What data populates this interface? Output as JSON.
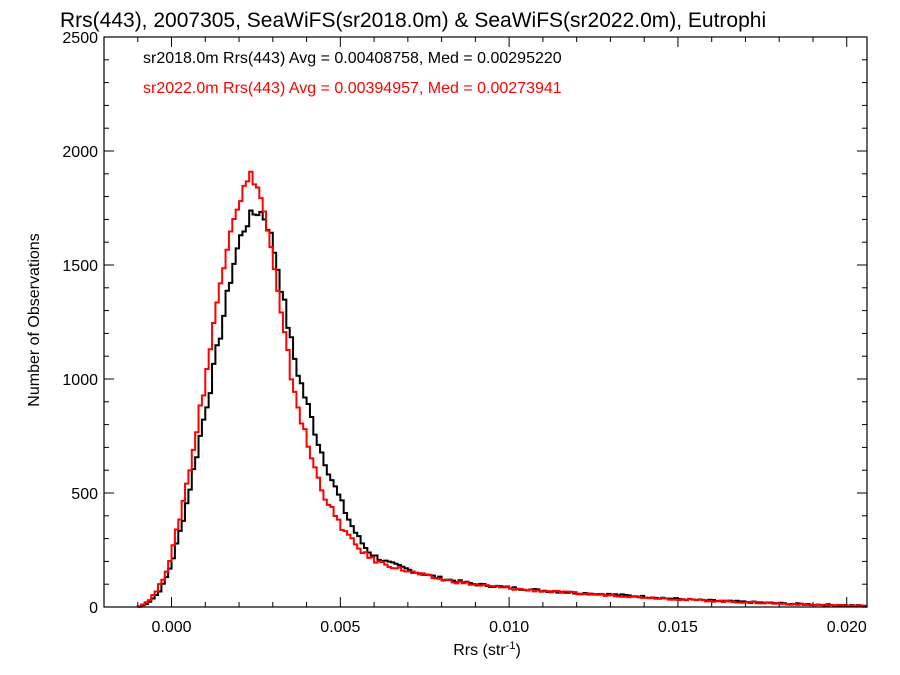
{
  "chart_data": {
    "type": "line",
    "title": "Rrs(443), 2007305, SeaWiFS(sr2018.0m) & SeaWiFS(sr2022.0m), Eutrophi",
    "xlabel_base": "Rrs (str",
    "xlabel_sup": "-1",
    "xlabel_close": ")",
    "ylabel": "Number of Observations",
    "xlim": [
      -0.002,
      0.0206
    ],
    "ylim": [
      0,
      2500
    ],
    "x_ticks": [
      0.0,
      0.005,
      0.01,
      0.015,
      0.02
    ],
    "x_tick_labels": [
      "0.000",
      "0.005",
      "0.010",
      "0.015",
      "0.020"
    ],
    "y_ticks": [
      0,
      500,
      1000,
      1500,
      2000,
      2500
    ],
    "y_tick_labels": [
      "0",
      "500",
      "1000",
      "1500",
      "2000",
      "2500"
    ],
    "legend_placement": "top-left",
    "series": [
      {
        "name": "sr2018.0m",
        "color": "#000000",
        "annotation": "sr2018.0m Rrs(443) Avg = 0.00408758, Med = 0.00295220",
        "points": [
          [
            -0.001,
            0
          ],
          [
            -0.0008,
            10
          ],
          [
            -0.0006,
            30
          ],
          [
            -0.0004,
            60
          ],
          [
            -0.0002,
            110
          ],
          [
            0.0,
            190
          ],
          [
            0.0002,
            300
          ],
          [
            0.0004,
            420
          ],
          [
            0.0006,
            560
          ],
          [
            0.0008,
            710
          ],
          [
            0.001,
            860
          ],
          [
            0.0012,
            1000
          ],
          [
            0.0014,
            1160
          ],
          [
            0.0016,
            1320
          ],
          [
            0.0018,
            1480
          ],
          [
            0.002,
            1600
          ],
          [
            0.0022,
            1680
          ],
          [
            0.0024,
            1720
          ],
          [
            0.0026,
            1740
          ],
          [
            0.0028,
            1700
          ],
          [
            0.003,
            1600
          ],
          [
            0.0032,
            1450
          ],
          [
            0.0034,
            1280
          ],
          [
            0.0036,
            1120
          ],
          [
            0.0038,
            1000
          ],
          [
            0.004,
            900
          ],
          [
            0.0042,
            800
          ],
          [
            0.0044,
            700
          ],
          [
            0.0046,
            620
          ],
          [
            0.0048,
            540
          ],
          [
            0.005,
            470
          ],
          [
            0.0052,
            400
          ],
          [
            0.0054,
            340
          ],
          [
            0.0056,
            290
          ],
          [
            0.0058,
            250
          ],
          [
            0.006,
            225
          ],
          [
            0.0064,
            195
          ],
          [
            0.0068,
            175
          ],
          [
            0.0072,
            155
          ],
          [
            0.0076,
            140
          ],
          [
            0.008,
            125
          ],
          [
            0.009,
            100
          ],
          [
            0.01,
            85
          ],
          [
            0.011,
            72
          ],
          [
            0.012,
            62
          ],
          [
            0.013,
            55
          ],
          [
            0.014,
            45
          ],
          [
            0.015,
            35
          ],
          [
            0.016,
            28
          ],
          [
            0.017,
            22
          ],
          [
            0.018,
            16
          ],
          [
            0.019,
            11
          ],
          [
            0.02,
            7
          ],
          [
            0.0206,
            5
          ]
        ]
      },
      {
        "name": "sr2022.0m",
        "color": "#ff0000",
        "annotation": "sr2022.0m Rrs(443) Avg = 0.00394957, Med = 0.00273941",
        "points": [
          [
            -0.001,
            0
          ],
          [
            -0.0008,
            15
          ],
          [
            -0.0006,
            40
          ],
          [
            -0.0004,
            80
          ],
          [
            -0.0002,
            140
          ],
          [
            0.0,
            230
          ],
          [
            0.0002,
            360
          ],
          [
            0.0004,
            500
          ],
          [
            0.0006,
            650
          ],
          [
            0.0008,
            820
          ],
          [
            0.001,
            1000
          ],
          [
            0.0012,
            1180
          ],
          [
            0.0014,
            1380
          ],
          [
            0.0016,
            1560
          ],
          [
            0.0018,
            1700
          ],
          [
            0.002,
            1780
          ],
          [
            0.0022,
            1850
          ],
          [
            0.0024,
            1900
          ],
          [
            0.0026,
            1820
          ],
          [
            0.0028,
            1700
          ],
          [
            0.003,
            1520
          ],
          [
            0.0032,
            1320
          ],
          [
            0.0034,
            1140
          ],
          [
            0.0036,
            980
          ],
          [
            0.0038,
            850
          ],
          [
            0.004,
            730
          ],
          [
            0.0042,
            630
          ],
          [
            0.0044,
            540
          ],
          [
            0.0046,
            470
          ],
          [
            0.0048,
            410
          ],
          [
            0.005,
            360
          ],
          [
            0.0052,
            320
          ],
          [
            0.0054,
            280
          ],
          [
            0.0056,
            250
          ],
          [
            0.0058,
            225
          ],
          [
            0.006,
            205
          ],
          [
            0.0064,
            185
          ],
          [
            0.0068,
            165
          ],
          [
            0.0072,
            150
          ],
          [
            0.0076,
            135
          ],
          [
            0.008,
            120
          ],
          [
            0.009,
            98
          ],
          [
            0.01,
            82
          ],
          [
            0.011,
            70
          ],
          [
            0.012,
            60
          ],
          [
            0.013,
            52
          ],
          [
            0.014,
            43
          ],
          [
            0.015,
            34
          ],
          [
            0.016,
            27
          ],
          [
            0.017,
            21
          ],
          [
            0.018,
            15
          ],
          [
            0.019,
            10
          ],
          [
            0.02,
            6
          ],
          [
            0.0206,
            4
          ]
        ]
      }
    ]
  }
}
